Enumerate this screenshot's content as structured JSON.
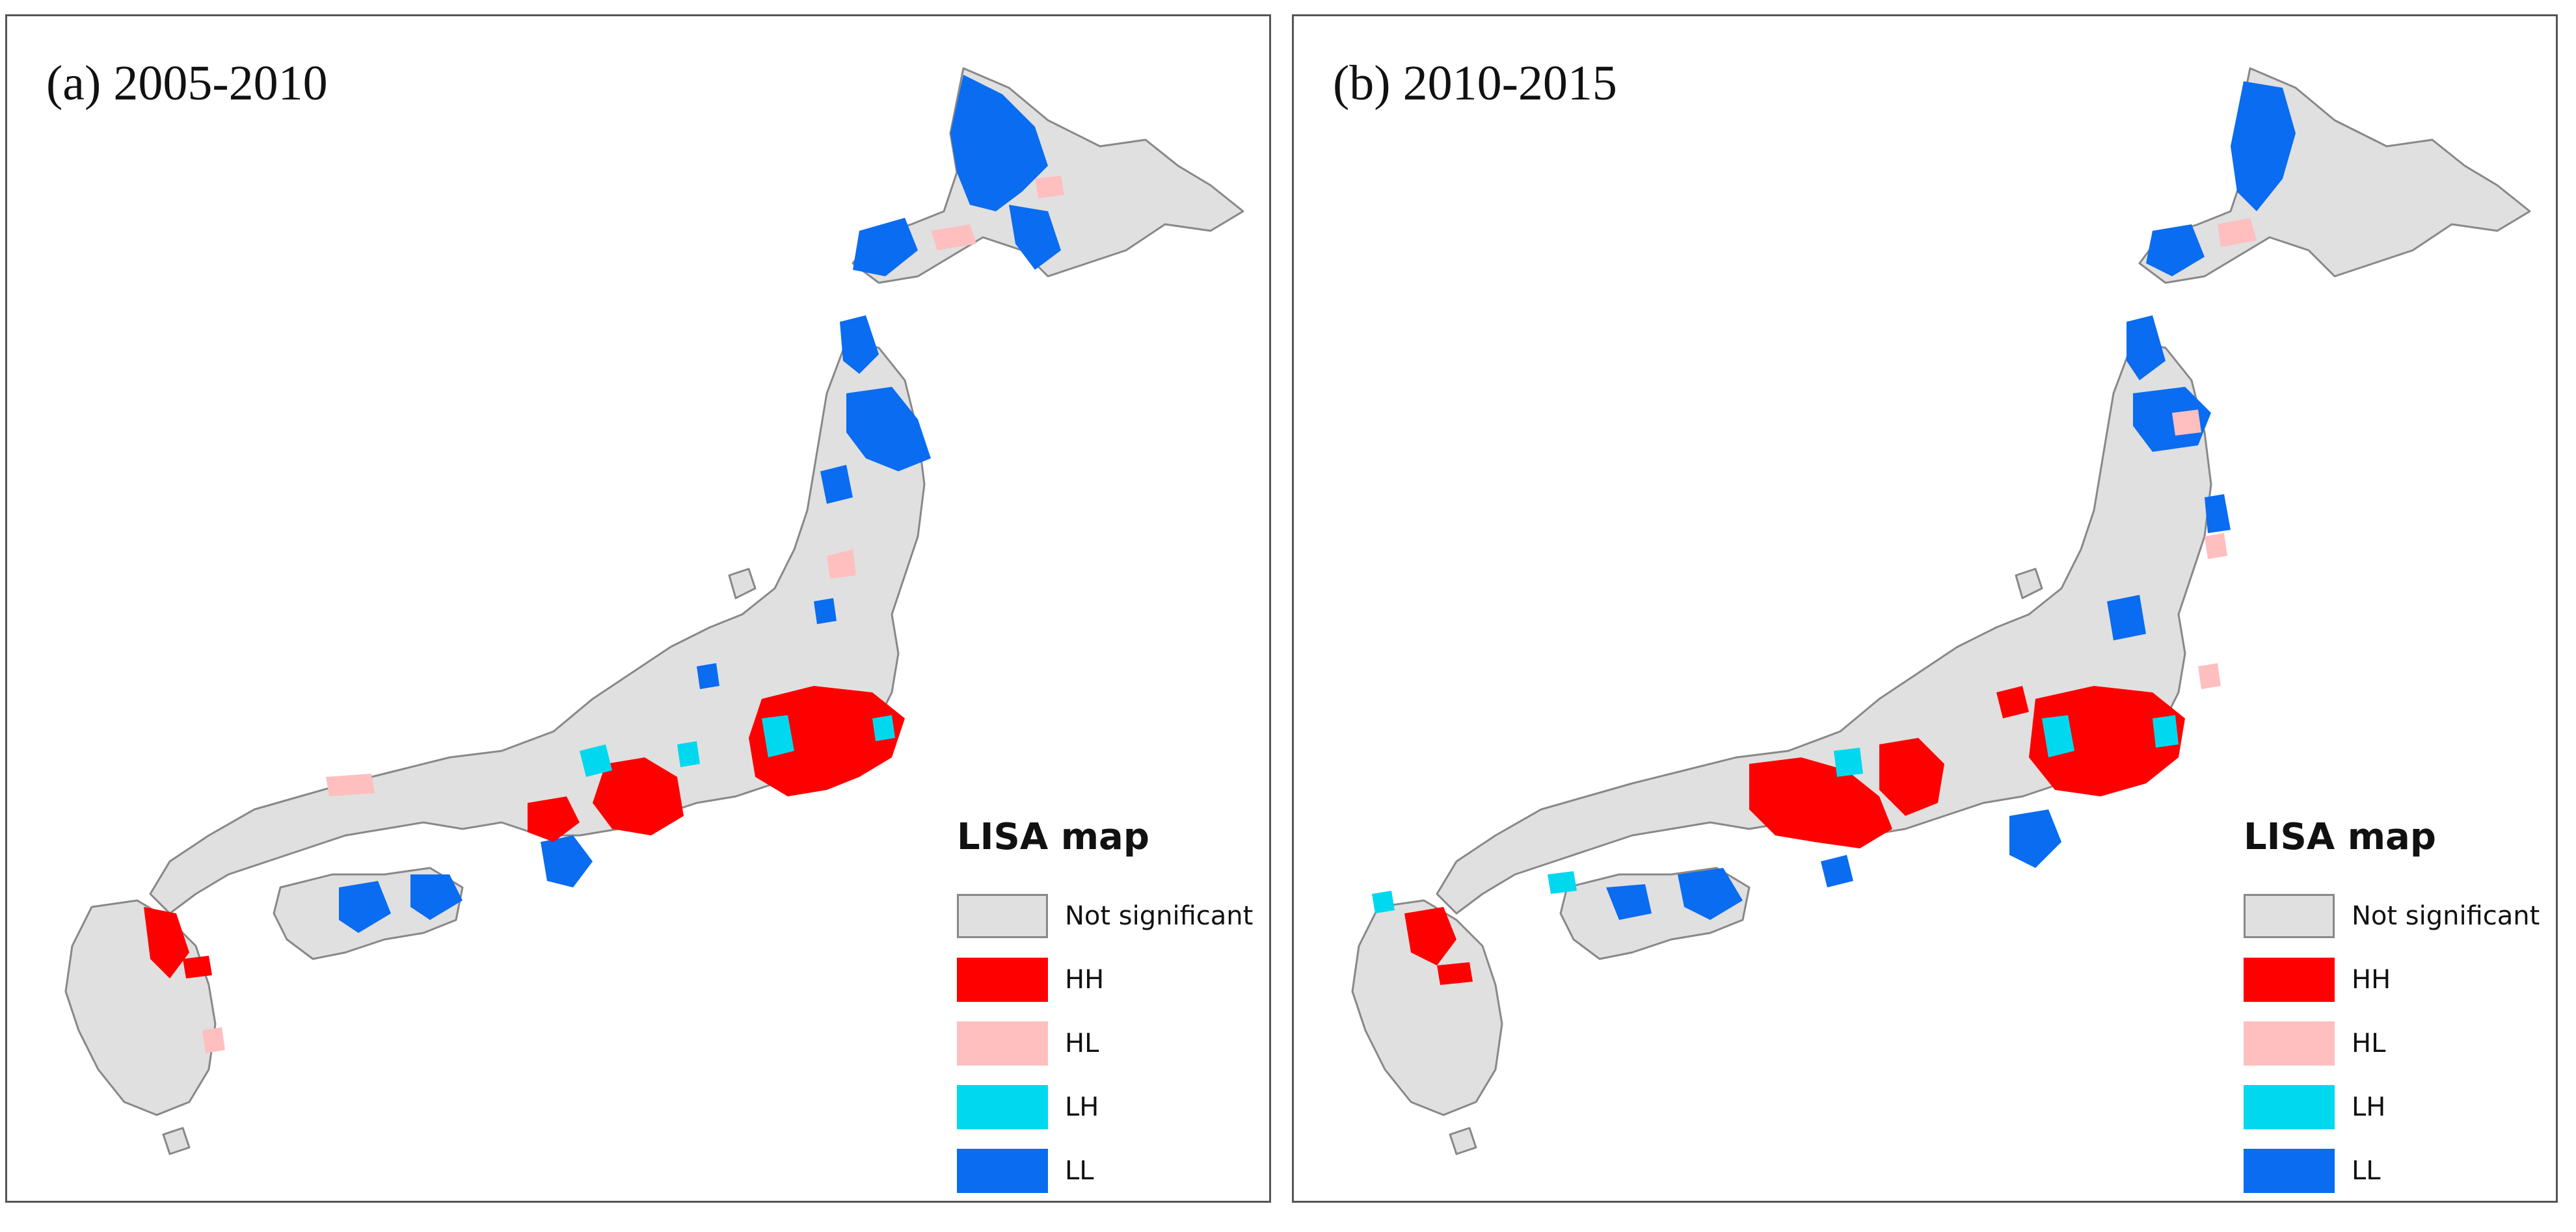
{
  "legend": {
    "title": "LISA map",
    "items": [
      {
        "key": "not_significant",
        "label": "Not significant",
        "color": "#e0e0e0",
        "border": "#888888"
      },
      {
        "key": "hh",
        "label": "HH",
        "color": "#ff0000"
      },
      {
        "key": "hl",
        "label": "HL",
        "color": "#ffbfbf"
      },
      {
        "key": "lh",
        "label": "LH",
        "color": "#00d8f0"
      },
      {
        "key": "ll",
        "label": "LL",
        "color": "#0a6cf0"
      }
    ]
  },
  "colors": {
    "land": "#e0e0e0",
    "boundary": "#888888",
    "hh": "#ff0000",
    "hl": "#ffbfbf",
    "lh": "#00d8f0",
    "ll": "#0a6cf0",
    "panel_border": "#555555"
  },
  "panels": [
    {
      "id": "a",
      "title": "(a) 2005-2010"
    },
    {
      "id": "b",
      "title": "(b) 2010-2015"
    }
  ]
}
